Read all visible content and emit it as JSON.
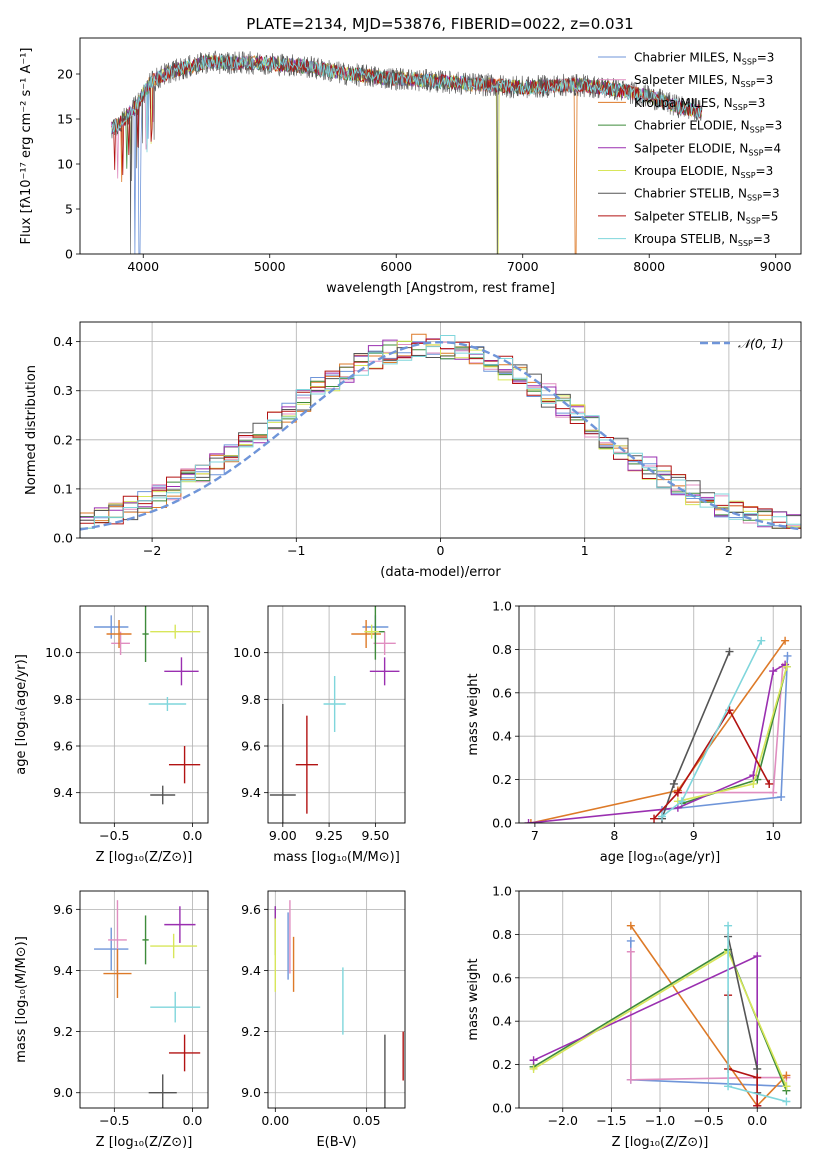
{
  "figure_title": "PLATE=2134, MJD=53876, FIBERID=0022, z=0.031",
  "colors": {
    "Chabrier MILES": "#6f95d9",
    "Salpeter MILES": "#e08ec0",
    "Kroupa MILES": "#dd7a28",
    "Chabrier ELODIE": "#3e8b3a",
    "Salpeter ELODIE": "#9a2fb0",
    "Kroupa ELODIE": "#d8e65a",
    "Chabrier STELIB": "#555555",
    "Salpeter STELIB": "#b21313",
    "Kroupa STELIB": "#7fd6dc"
  },
  "chart_data": [
    {
      "id": "spectrum",
      "type": "line",
      "xlabel": "wavelength [Angstrom, rest frame]",
      "ylabel": "Flux [fλ10⁻¹⁷ erg cm⁻² s⁻¹ A⁻¹]",
      "xlim": [
        3500,
        9200
      ],
      "ylim": [
        0,
        24
      ],
      "xticks": [
        4000,
        5000,
        6000,
        7000,
        8000,
        9000
      ],
      "yticks": [
        0,
        5,
        10,
        15,
        20
      ],
      "grid": false,
      "legend_position": "top-right",
      "wavelength_range": [
        3750,
        8420
      ],
      "continuum_points": [
        [
          3750,
          14
        ],
        [
          3850,
          15
        ],
        [
          3950,
          16.5
        ],
        [
          4050,
          19
        ],
        [
          4200,
          20.2
        ],
        [
          4500,
          21.3
        ],
        [
          5000,
          21.2
        ],
        [
          5300,
          20.8
        ],
        [
          5600,
          20
        ],
        [
          5900,
          19.6
        ],
        [
          6300,
          19.2
        ],
        [
          6700,
          18.8
        ],
        [
          7000,
          18.5
        ],
        [
          7400,
          18.8
        ],
        [
          7700,
          18.4
        ],
        [
          8000,
          17.5
        ],
        [
          8200,
          16.5
        ],
        [
          8420,
          15.8
        ]
      ],
      "series": [
        {
          "name": "Chabrier MILES, N",
          "nssp": "=3"
        },
        {
          "name": "Salpeter MILES, N",
          "nssp": "=3"
        },
        {
          "name": "Kroupa MILES, N",
          "nssp": "=3"
        },
        {
          "name": "Chabrier ELODIE, N",
          "nssp": "=3"
        },
        {
          "name": "Salpeter ELODIE, N",
          "nssp": "=4"
        },
        {
          "name": "Kroupa ELODIE, N",
          "nssp": "=3"
        },
        {
          "name": "Chabrier STELIB, N",
          "nssp": "=3"
        },
        {
          "name": "Salpeter STELIB, N",
          "nssp": "=5"
        },
        {
          "name": "Kroupa STELIB, N",
          "nssp": "=3"
        }
      ]
    },
    {
      "id": "residuals",
      "type": "bar",
      "xlabel": "(data-model)/error",
      "ylabel": "Normed distribution",
      "xlim": [
        -2.5,
        2.5
      ],
      "ylim": [
        0,
        0.44
      ],
      "xticks": [
        -2,
        -1,
        0,
        1,
        2
      ],
      "yticks": [
        0.0,
        0.1,
        0.2,
        0.3,
        0.4
      ],
      "grid": true,
      "legend_position": "top-right",
      "reference_curve": {
        "label": "𝒩(0, 1)",
        "mean": 0,
        "sigma": 1
      },
      "bins": 50
    },
    {
      "id": "age-vs-Z",
      "type": "scatter",
      "xlabel": "Z [log₁₀(Z/Z⊙)]",
      "ylabel": "age  [log₁₀(age/yr)]",
      "xlim": [
        -0.72,
        0.1
      ],
      "ylim": [
        9.27,
        10.2
      ],
      "xticks": [
        -0.5,
        0.0
      ],
      "yticks": [
        9.4,
        9.6,
        9.8,
        10.0
      ],
      "grid": true,
      "points": [
        {
          "series": "Chabrier MILES",
          "x": -0.52,
          "y": 10.11,
          "xerr": 0.11,
          "yerr": 0.05
        },
        {
          "series": "Salpeter MILES",
          "x": -0.46,
          "y": 10.04,
          "xerr": 0.06,
          "yerr": 0.05
        },
        {
          "series": "Kroupa MILES",
          "x": -0.47,
          "y": 10.08,
          "xerr": 0.08,
          "yerr": 0.06
        },
        {
          "series": "Chabrier ELODIE",
          "x": -0.3,
          "y": 10.08,
          "xerr": 0.02,
          "yerr": 0.12
        },
        {
          "series": "Salpeter ELODIE",
          "x": -0.07,
          "y": 9.92,
          "xerr": 0.11,
          "yerr": 0.06
        },
        {
          "series": "Kroupa ELODIE",
          "x": -0.11,
          "y": 10.09,
          "xerr": 0.16,
          "yerr": 0.03
        },
        {
          "series": "Chabrier STELIB",
          "x": -0.19,
          "y": 9.39,
          "xerr": 0.08,
          "yerr": 0.04
        },
        {
          "series": "Salpeter STELIB",
          "x": -0.05,
          "y": 9.52,
          "xerr": 0.1,
          "yerr": 0.08
        },
        {
          "series": "Kroupa STELIB",
          "x": -0.16,
          "y": 9.78,
          "xerr": 0.12,
          "yerr": 0.03
        }
      ]
    },
    {
      "id": "age-vs-mass",
      "type": "scatter",
      "xlabel": "mass [log₁₀(M/M⊙)]",
      "ylabel": "",
      "xlim": [
        8.92,
        9.66
      ],
      "ylim": [
        9.27,
        10.2
      ],
      "xticks": [
        9.0,
        9.25,
        9.5
      ],
      "yticks": [
        9.4,
        9.6,
        9.8,
        10.0
      ],
      "grid": true,
      "points": [
        {
          "series": "Chabrier MILES",
          "x": 9.5,
          "y": 10.11,
          "xerr": 0.07,
          "yerr": 0.05
        },
        {
          "series": "Salpeter MILES",
          "x": 9.55,
          "y": 10.04,
          "xerr": 0.06,
          "yerr": 0.05
        },
        {
          "series": "Kroupa MILES",
          "x": 9.45,
          "y": 10.08,
          "xerr": 0.08,
          "yerr": 0.06
        },
        {
          "series": "Chabrier ELODIE",
          "x": 9.5,
          "y": 10.09,
          "xerr": 0.05,
          "yerr": 0.12
        },
        {
          "series": "Salpeter ELODIE",
          "x": 9.55,
          "y": 9.92,
          "xerr": 0.08,
          "yerr": 0.06
        },
        {
          "series": "Kroupa ELODIE",
          "x": 9.48,
          "y": 10.09,
          "xerr": 0.04,
          "yerr": 0.03
        },
        {
          "series": "Chabrier STELIB",
          "x": 9.0,
          "y": 9.39,
          "xerr": 0.07,
          "yerr": 0.39
        },
        {
          "series": "Salpeter STELIB",
          "x": 9.13,
          "y": 9.52,
          "xerr": 0.06,
          "yerr": 0.21
        },
        {
          "series": "Kroupa STELIB",
          "x": 9.28,
          "y": 9.78,
          "xerr": 0.06,
          "yerr": 0.12
        }
      ]
    },
    {
      "id": "weight-vs-age",
      "type": "line",
      "xlabel": "age  [log₁₀(age/yr)]",
      "ylabel": "mass weight",
      "xlim": [
        6.8,
        10.35
      ],
      "ylim": [
        0,
        1
      ],
      "xticks": [
        7,
        8,
        9,
        10
      ],
      "yticks": [
        0.0,
        0.2,
        0.4,
        0.6,
        0.8,
        1.0
      ],
      "grid": true,
      "series": [
        {
          "series": "Chabrier MILES",
          "x": [
            8.6,
            10.1,
            10.18
          ],
          "y": [
            0.06,
            0.12,
            0.77
          ]
        },
        {
          "series": "Salpeter MILES",
          "x": [
            8.8,
            10.0,
            10.12
          ],
          "y": [
            0.14,
            0.14,
            0.72
          ]
        },
        {
          "series": "Kroupa MILES",
          "x": [
            6.95,
            8.8,
            10.15
          ],
          "y": [
            0.0,
            0.15,
            0.84
          ]
        },
        {
          "series": "Chabrier ELODIE",
          "x": [
            8.85,
            9.8,
            10.17
          ],
          "y": [
            0.09,
            0.2,
            0.72
          ]
        },
        {
          "series": "Salpeter ELODIE",
          "x": [
            6.92,
            8.8,
            9.75,
            10.0,
            10.15
          ],
          "y": [
            0.0,
            0.07,
            0.22,
            0.7,
            0.73
          ]
        },
        {
          "series": "Kroupa ELODIE",
          "x": [
            8.8,
            9.75,
            10.17
          ],
          "y": [
            0.1,
            0.18,
            0.72
          ]
        },
        {
          "series": "Chabrier STELIB",
          "x": [
            8.6,
            8.75,
            9.45
          ],
          "y": [
            0.02,
            0.18,
            0.79
          ]
        },
        {
          "series": "Salpeter STELIB",
          "x": [
            8.5,
            8.8,
            9.45,
            9.95
          ],
          "y": [
            0.02,
            0.14,
            0.52,
            0.18
          ]
        },
        {
          "series": "Kroupa STELIB",
          "x": [
            8.6,
            8.85,
            9.85
          ],
          "y": [
            0.03,
            0.1,
            0.84
          ]
        }
      ]
    },
    {
      "id": "mass-vs-Z",
      "type": "scatter",
      "xlabel": "Z [log₁₀(Z/Z⊙)]",
      "ylabel": "mass [log₁₀(M/M⊙)]",
      "xlim": [
        -0.72,
        0.1
      ],
      "ylim": [
        8.95,
        9.66
      ],
      "xticks": [
        -0.5,
        0.0
      ],
      "yticks": [
        9.0,
        9.2,
        9.4,
        9.6
      ],
      "grid": true,
      "points": [
        {
          "series": "Chabrier MILES",
          "x": -0.52,
          "y": 9.47,
          "xerr": 0.11,
          "yerr": 0.07
        },
        {
          "series": "Salpeter MILES",
          "x": -0.48,
          "y": 9.5,
          "xerr": 0.06,
          "yerr": 0.13
        },
        {
          "series": "Kroupa MILES",
          "x": -0.48,
          "y": 9.39,
          "xerr": 0.09,
          "yerr": 0.08
        },
        {
          "series": "Chabrier ELODIE",
          "x": -0.3,
          "y": 9.5,
          "xerr": 0.02,
          "yerr": 0.08
        },
        {
          "series": "Salpeter ELODIE",
          "x": -0.08,
          "y": 9.55,
          "xerr": 0.1,
          "yerr": 0.06
        },
        {
          "series": "Kroupa ELODIE",
          "x": -0.12,
          "y": 9.48,
          "xerr": 0.15,
          "yerr": 0.04
        },
        {
          "series": "Chabrier STELIB",
          "x": -0.19,
          "y": 9.0,
          "xerr": 0.09,
          "yerr": 0.06
        },
        {
          "series": "Salpeter STELIB",
          "x": -0.05,
          "y": 9.13,
          "xerr": 0.1,
          "yerr": 0.06
        },
        {
          "series": "Kroupa STELIB",
          "x": -0.11,
          "y": 9.28,
          "xerr": 0.16,
          "yerr": 0.05
        }
      ]
    },
    {
      "id": "mass-vs-ebv",
      "type": "scatter",
      "xlabel": "E(B-V)",
      "ylabel": "",
      "xlim": [
        -0.004,
        0.071
      ],
      "ylim": [
        8.95,
        9.66
      ],
      "xticks": [
        0.0,
        0.05
      ],
      "yticks": [
        9.0,
        9.2,
        9.4,
        9.6
      ],
      "grid": true,
      "points": [
        {
          "series": "Chabrier MILES",
          "x": 0.007,
          "y": 9.48,
          "xerr": 0,
          "yerr": 0.11
        },
        {
          "series": "Salpeter MILES",
          "x": 0.008,
          "y": 9.51,
          "xerr": 0,
          "yerr": 0.12
        },
        {
          "series": "Kroupa MILES",
          "x": 0.01,
          "y": 9.42,
          "xerr": 0,
          "yerr": 0.09
        },
        {
          "series": "Chabrier ELODIE",
          "x": 0.0,
          "y": 9.53,
          "xerr": 0,
          "yerr": 0.08
        },
        {
          "series": "Salpeter ELODIE",
          "x": 0.0,
          "y": 9.56,
          "xerr": 0,
          "yerr": 0.05
        },
        {
          "series": "Kroupa ELODIE",
          "x": 0.0,
          "y": 9.45,
          "xerr": 0,
          "yerr": 0.12
        },
        {
          "series": "Chabrier STELIB",
          "x": 0.06,
          "y": 9.04,
          "xerr": 0,
          "yerr": 0.15
        },
        {
          "series": "Salpeter STELIB",
          "x": 0.07,
          "y": 9.12,
          "xerr": 0,
          "yerr": 0.08
        },
        {
          "series": "Kroupa STELIB",
          "x": 0.037,
          "y": 9.3,
          "xerr": 0,
          "yerr": 0.11
        }
      ]
    },
    {
      "id": "weight-vs-Z",
      "type": "line",
      "xlabel": "Z [log₁₀(Z/Z⊙)]",
      "ylabel": "mass weight",
      "xlim": [
        -2.45,
        0.45
      ],
      "ylim": [
        0,
        1
      ],
      "xticks": [
        -2.0,
        -1.5,
        -1.0,
        -0.5,
        0.0
      ],
      "yticks": [
        0.0,
        0.2,
        0.4,
        0.6,
        0.8,
        1.0
      ],
      "grid": true,
      "series": [
        {
          "series": "Chabrier MILES",
          "x": [
            -1.3,
            -1.3,
            0.3
          ],
          "y": [
            0.77,
            0.13,
            0.1
          ]
        },
        {
          "series": "Salpeter MILES",
          "x": [
            -1.3,
            -1.3,
            0.0,
            0.3
          ],
          "y": [
            0.72,
            0.13,
            0.14,
            0.14
          ]
        },
        {
          "series": "Kroupa MILES",
          "x": [
            -1.3,
            0.0,
            0.3
          ],
          "y": [
            0.84,
            0.01,
            0.15
          ]
        },
        {
          "series": "Chabrier ELODIE",
          "x": [
            -2.3,
            -0.3,
            0.3
          ],
          "y": [
            0.19,
            0.73,
            0.08
          ]
        },
        {
          "series": "Salpeter ELODIE",
          "x": [
            -2.3,
            0.0,
            0.0
          ],
          "y": [
            0.22,
            0.7,
            0.01
          ]
        },
        {
          "series": "Kroupa ELODIE",
          "x": [
            -2.3,
            -0.3,
            0.3
          ],
          "y": [
            0.18,
            0.72,
            0.1
          ]
        },
        {
          "series": "Chabrier STELIB",
          "x": [
            -0.3,
            0.0,
            0.0
          ],
          "y": [
            0.79,
            0.18,
            0.07
          ]
        },
        {
          "series": "Salpeter STELIB",
          "x": [
            -0.3,
            -0.3,
            0.0,
            0.0
          ],
          "y": [
            0.52,
            0.18,
            0.14,
            0.01
          ]
        },
        {
          "series": "Kroupa STELIB",
          "x": [
            -0.3,
            -0.3,
            0.3
          ],
          "y": [
            0.84,
            0.1,
            0.03
          ]
        }
      ]
    }
  ]
}
